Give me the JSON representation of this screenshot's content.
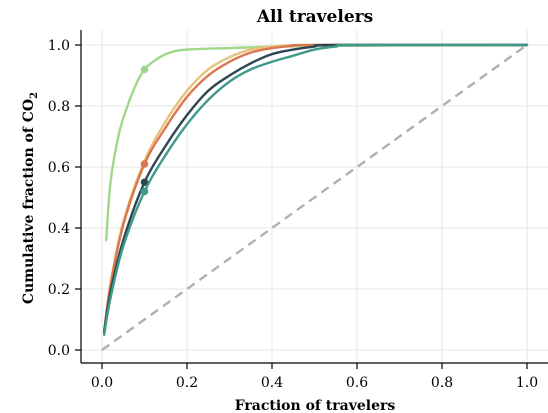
{
  "chart_data": {
    "type": "line",
    "title": "All travelers",
    "xlabel": "Fraction of travelers",
    "ylabel": "Cumulative fraction of CO",
    "ylabel_sub": "2",
    "xlim": [
      0,
      1
    ],
    "ylim": [
      0,
      1.0
    ],
    "x_ticks": [
      0.0,
      0.2,
      0.4,
      0.6,
      0.8,
      1.0
    ],
    "x_tick_labels": [
      "0.0",
      "0.2",
      "0.4",
      "0.6",
      "0.8",
      "1.0"
    ],
    "y_ticks": [
      0.0,
      0.2,
      0.4,
      0.6,
      0.8,
      1.0
    ],
    "y_tick_labels": [
      "0.0",
      "0.2",
      "0.4",
      "0.6",
      "0.8",
      "1.0"
    ],
    "grid": true,
    "reference_line": {
      "x": [
        0,
        1
      ],
      "y": [
        0,
        1
      ],
      "color": "#b3b3b3",
      "style": "dashed"
    },
    "series": [
      {
        "color": "#9ed98a",
        "x": [
          0.01,
          0.02,
          0.04,
          0.06,
          0.08,
          0.1,
          0.13,
          0.16,
          0.2,
          0.3,
          0.5,
          1.0
        ],
        "y": [
          0.36,
          0.55,
          0.71,
          0.8,
          0.87,
          0.92,
          0.955,
          0.975,
          0.985,
          0.99,
          0.997,
          1.0
        ],
        "marker": {
          "x": 0.1,
          "y": 0.92
        }
      },
      {
        "color": "#e8c27a",
        "x": [
          0.005,
          0.02,
          0.05,
          0.1,
          0.15,
          0.2,
          0.25,
          0.3,
          0.35,
          0.4,
          0.5,
          1.0
        ],
        "y": [
          0.06,
          0.22,
          0.42,
          0.62,
          0.75,
          0.85,
          0.92,
          0.96,
          0.985,
          0.995,
          1.0,
          1.0
        ]
      },
      {
        "color": "#d9774f",
        "x": [
          0.005,
          0.02,
          0.05,
          0.1,
          0.15,
          0.2,
          0.25,
          0.3,
          0.35,
          0.4,
          0.45,
          0.5,
          1.0
        ],
        "y": [
          0.06,
          0.21,
          0.41,
          0.61,
          0.73,
          0.83,
          0.9,
          0.945,
          0.975,
          0.99,
          0.997,
          1.0,
          1.0
        ],
        "marker": {
          "x": 0.1,
          "y": 0.61
        }
      },
      {
        "color": "#2e4653",
        "x": [
          0.005,
          0.02,
          0.05,
          0.1,
          0.15,
          0.2,
          0.25,
          0.3,
          0.35,
          0.4,
          0.45,
          0.5,
          0.55,
          1.0
        ],
        "y": [
          0.06,
          0.19,
          0.36,
          0.55,
          0.67,
          0.77,
          0.85,
          0.9,
          0.94,
          0.97,
          0.985,
          0.995,
          1.0,
          1.0
        ],
        "marker": {
          "x": 0.1,
          "y": 0.55
        }
      },
      {
        "color": "#3f9a8c",
        "x": [
          0.005,
          0.02,
          0.05,
          0.1,
          0.15,
          0.2,
          0.25,
          0.3,
          0.35,
          0.4,
          0.45,
          0.5,
          0.55,
          0.6,
          1.0
        ],
        "y": [
          0.05,
          0.17,
          0.34,
          0.52,
          0.64,
          0.74,
          0.82,
          0.88,
          0.92,
          0.945,
          0.965,
          0.985,
          0.995,
          1.0,
          1.0
        ],
        "marker": {
          "x": 0.1,
          "y": 0.52
        }
      }
    ]
  }
}
